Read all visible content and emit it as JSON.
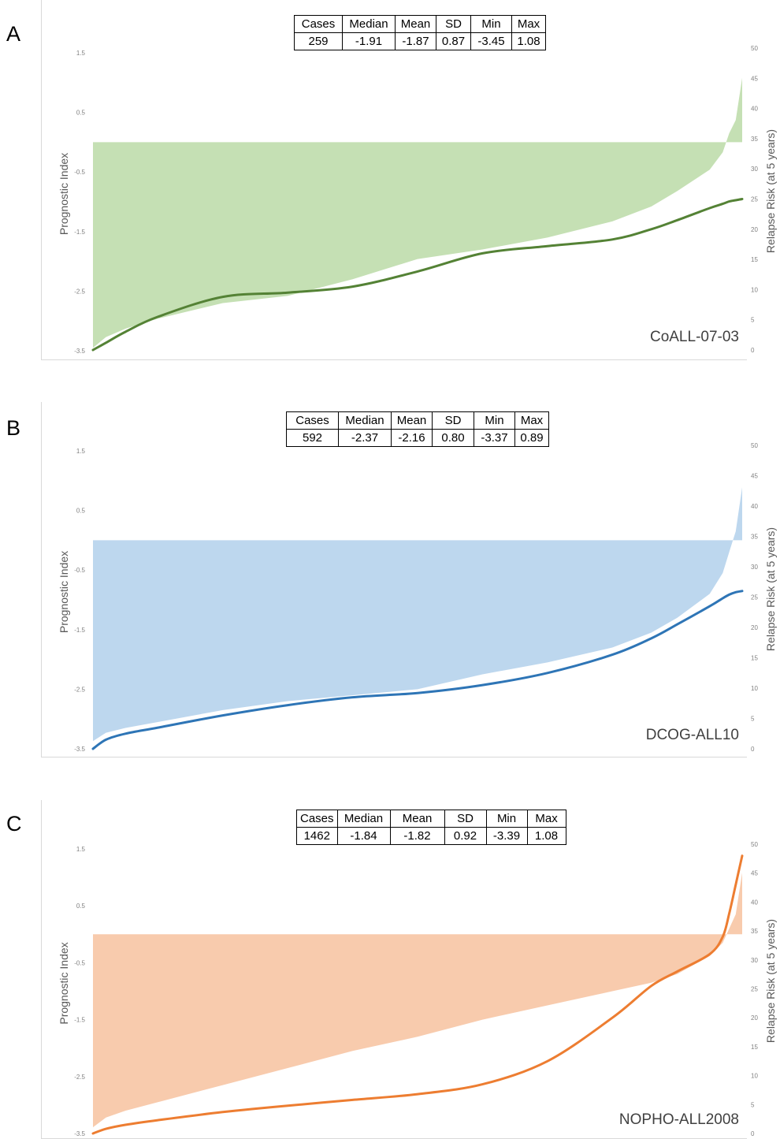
{
  "panels": [
    {
      "letter": "A",
      "stats": {
        "headers": [
          "Cases",
          "Median",
          "Mean",
          "SD",
          "Min",
          "Max"
        ],
        "values": [
          "259",
          "-1.91",
          "-1.87",
          "0.87",
          "-3.45",
          "1.08"
        ]
      },
      "colors": {
        "fill": "#c5e0b4",
        "line": "#548235"
      }
    },
    {
      "letter": "B",
      "stats": {
        "headers": [
          "Cases",
          "Median",
          "Mean",
          "SD",
          "Min",
          "Max"
        ],
        "values": [
          "592",
          "-2.37",
          "-2.16",
          "0.80",
          "-3.37",
          "0.89"
        ]
      },
      "colors": {
        "fill": "#bdd7ee",
        "line": "#2e75b6"
      }
    },
    {
      "letter": "C",
      "stats": {
        "headers": [
          "Cases",
          "Median",
          "Mean",
          "SD",
          "Min",
          "Max"
        ],
        "values": [
          "1462",
          "-1.84",
          "-1.82",
          "0.92",
          "-3.39",
          "1.08"
        ]
      },
      "colors": {
        "fill": "#f8cbad",
        "line": "#ed7d31"
      }
    }
  ],
  "chart_data": [
    {
      "type": "area",
      "dataset": "CoALL-07-03",
      "ylabel": "Prognostic Index",
      "y2label": "Relapse Risk (at 5 years)",
      "ylim": [
        -3.5,
        1.5
      ],
      "yticks": [
        1.5,
        0.5,
        -0.5,
        -1.5,
        -2.5,
        -3.5
      ],
      "y2lim": [
        0,
        50
      ],
      "y2ticks": [
        50,
        45,
        40,
        35,
        30,
        25,
        20,
        15,
        10,
        5,
        0
      ],
      "baseline": 0,
      "x": [
        0,
        0.02,
        0.05,
        0.1,
        0.2,
        0.3,
        0.4,
        0.5,
        0.6,
        0.7,
        0.8,
        0.86,
        0.9,
        0.95,
        0.97,
        0.98,
        0.99,
        1.0
      ],
      "series": [
        {
          "values": [
            -3.45,
            -3.27,
            -3.13,
            -2.96,
            -2.7,
            -2.58,
            -2.3,
            -1.96,
            -1.8,
            -1.6,
            -1.33,
            -1.08,
            -0.82,
            -0.46,
            -0.17,
            0.15,
            0.37,
            1.08
          ]
        },
        {
          "axis": "right",
          "values": [
            0,
            1.2,
            3,
            5.5,
            8.8,
            9.5,
            10.5,
            13,
            16,
            17.2,
            18.3,
            20,
            21.5,
            23.5,
            24.2,
            24.6,
            24.8,
            25
          ]
        }
      ]
    },
    {
      "type": "area",
      "dataset": "DCOG-ALL10",
      "ylabel": "Prognostic Index",
      "y2label": "Relapse Risk (at 5 years)",
      "ylim": [
        -3.5,
        1.5
      ],
      "yticks": [
        1.5,
        0.5,
        -0.5,
        -1.5,
        -2.5,
        -3.5
      ],
      "y2lim": [
        0,
        50
      ],
      "y2ticks": [
        50,
        45,
        40,
        35,
        30,
        25,
        20,
        15,
        10,
        5,
        0
      ],
      "baseline": 0,
      "x": [
        0,
        0.02,
        0.05,
        0.1,
        0.2,
        0.3,
        0.4,
        0.5,
        0.6,
        0.7,
        0.8,
        0.86,
        0.9,
        0.95,
        0.97,
        0.98,
        0.99,
        1.0
      ],
      "series": [
        {
          "values": [
            -3.37,
            -3.23,
            -3.15,
            -3.05,
            -2.85,
            -2.7,
            -2.6,
            -2.5,
            -2.25,
            -2.05,
            -1.8,
            -1.55,
            -1.3,
            -0.9,
            -0.55,
            -0.2,
            0.15,
            0.89
          ]
        },
        {
          "axis": "right",
          "values": [
            0,
            1.5,
            2.5,
            3.5,
            5.5,
            7.2,
            8.5,
            9.2,
            10.5,
            12.5,
            15.5,
            18.2,
            20.5,
            23.5,
            24.8,
            25.4,
            25.8,
            26
          ]
        }
      ]
    },
    {
      "type": "area",
      "dataset": "NOPHO-ALL2008",
      "ylabel": "Prognostic Index",
      "y2label": "Relapse Risk (at 5 years)",
      "ylim": [
        -3.5,
        1.5
      ],
      "yticks": [
        1.5,
        0.5,
        -0.5,
        -1.5,
        -2.5,
        -3.5
      ],
      "y2lim": [
        0,
        50
      ],
      "y2ticks": [
        50,
        45,
        40,
        35,
        30,
        25,
        20,
        15,
        10,
        5,
        0
      ],
      "baseline": 0,
      "x": [
        0,
        0.02,
        0.05,
        0.1,
        0.2,
        0.3,
        0.4,
        0.5,
        0.6,
        0.7,
        0.8,
        0.86,
        0.9,
        0.95,
        0.97,
        0.98,
        0.99,
        1.0
      ],
      "series": [
        {
          "values": [
            -3.39,
            -3.22,
            -3.1,
            -2.95,
            -2.65,
            -2.35,
            -2.05,
            -1.8,
            -1.5,
            -1.25,
            -1.0,
            -0.85,
            -0.7,
            -0.38,
            -0.15,
            0.1,
            0.35,
            1.08
          ]
        },
        {
          "axis": "right",
          "values": [
            0,
            0.8,
            1.5,
            2.3,
            3.7,
            4.8,
            5.8,
            6.8,
            8.5,
            12.5,
            20,
            25.5,
            28,
            31,
            34,
            38,
            43,
            48
          ]
        }
      ]
    }
  ]
}
